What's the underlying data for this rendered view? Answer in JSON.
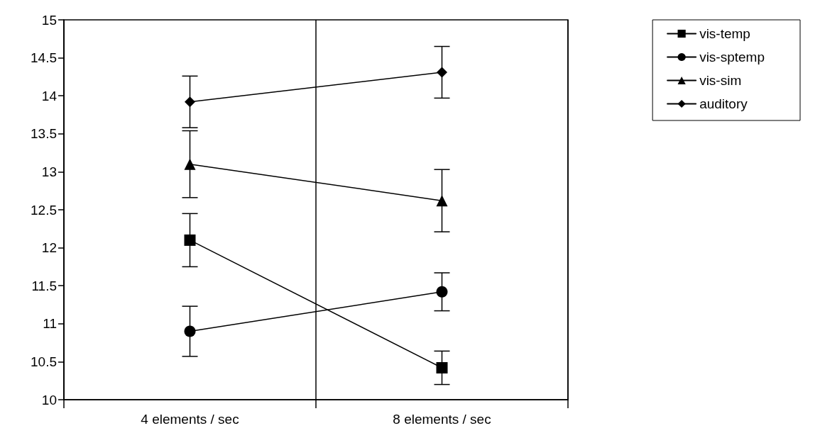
{
  "chart_data": {
    "type": "line",
    "categories": [
      "4 elements / sec",
      "8 elements / sec"
    ],
    "series": [
      {
        "name": "vis-temp",
        "color": "#000000",
        "marker": "square",
        "values": [
          12.1,
          10.42
        ],
        "errors": [
          0.35,
          0.22
        ]
      },
      {
        "name": "vis-sptemp",
        "color": "#000000",
        "marker": "circle",
        "values": [
          10.9,
          11.42
        ],
        "errors": [
          0.33,
          0.25
        ]
      },
      {
        "name": "vis-sim",
        "color": "#000000",
        "marker": "triangle",
        "values": [
          13.1,
          12.62
        ],
        "errors": [
          0.44,
          0.41
        ]
      },
      {
        "name": "auditory",
        "color": "#000000",
        "marker": "diamond",
        "values": [
          13.92,
          14.31
        ],
        "errors": [
          0.34,
          0.34
        ]
      }
    ],
    "ylim": [
      10,
      15
    ],
    "yticks": [
      10,
      10.5,
      11,
      11.5,
      12,
      12.5,
      13,
      13.5,
      14,
      14.5,
      15
    ],
    "grid": "x",
    "legend": "top right",
    "line_style": "solid"
  }
}
